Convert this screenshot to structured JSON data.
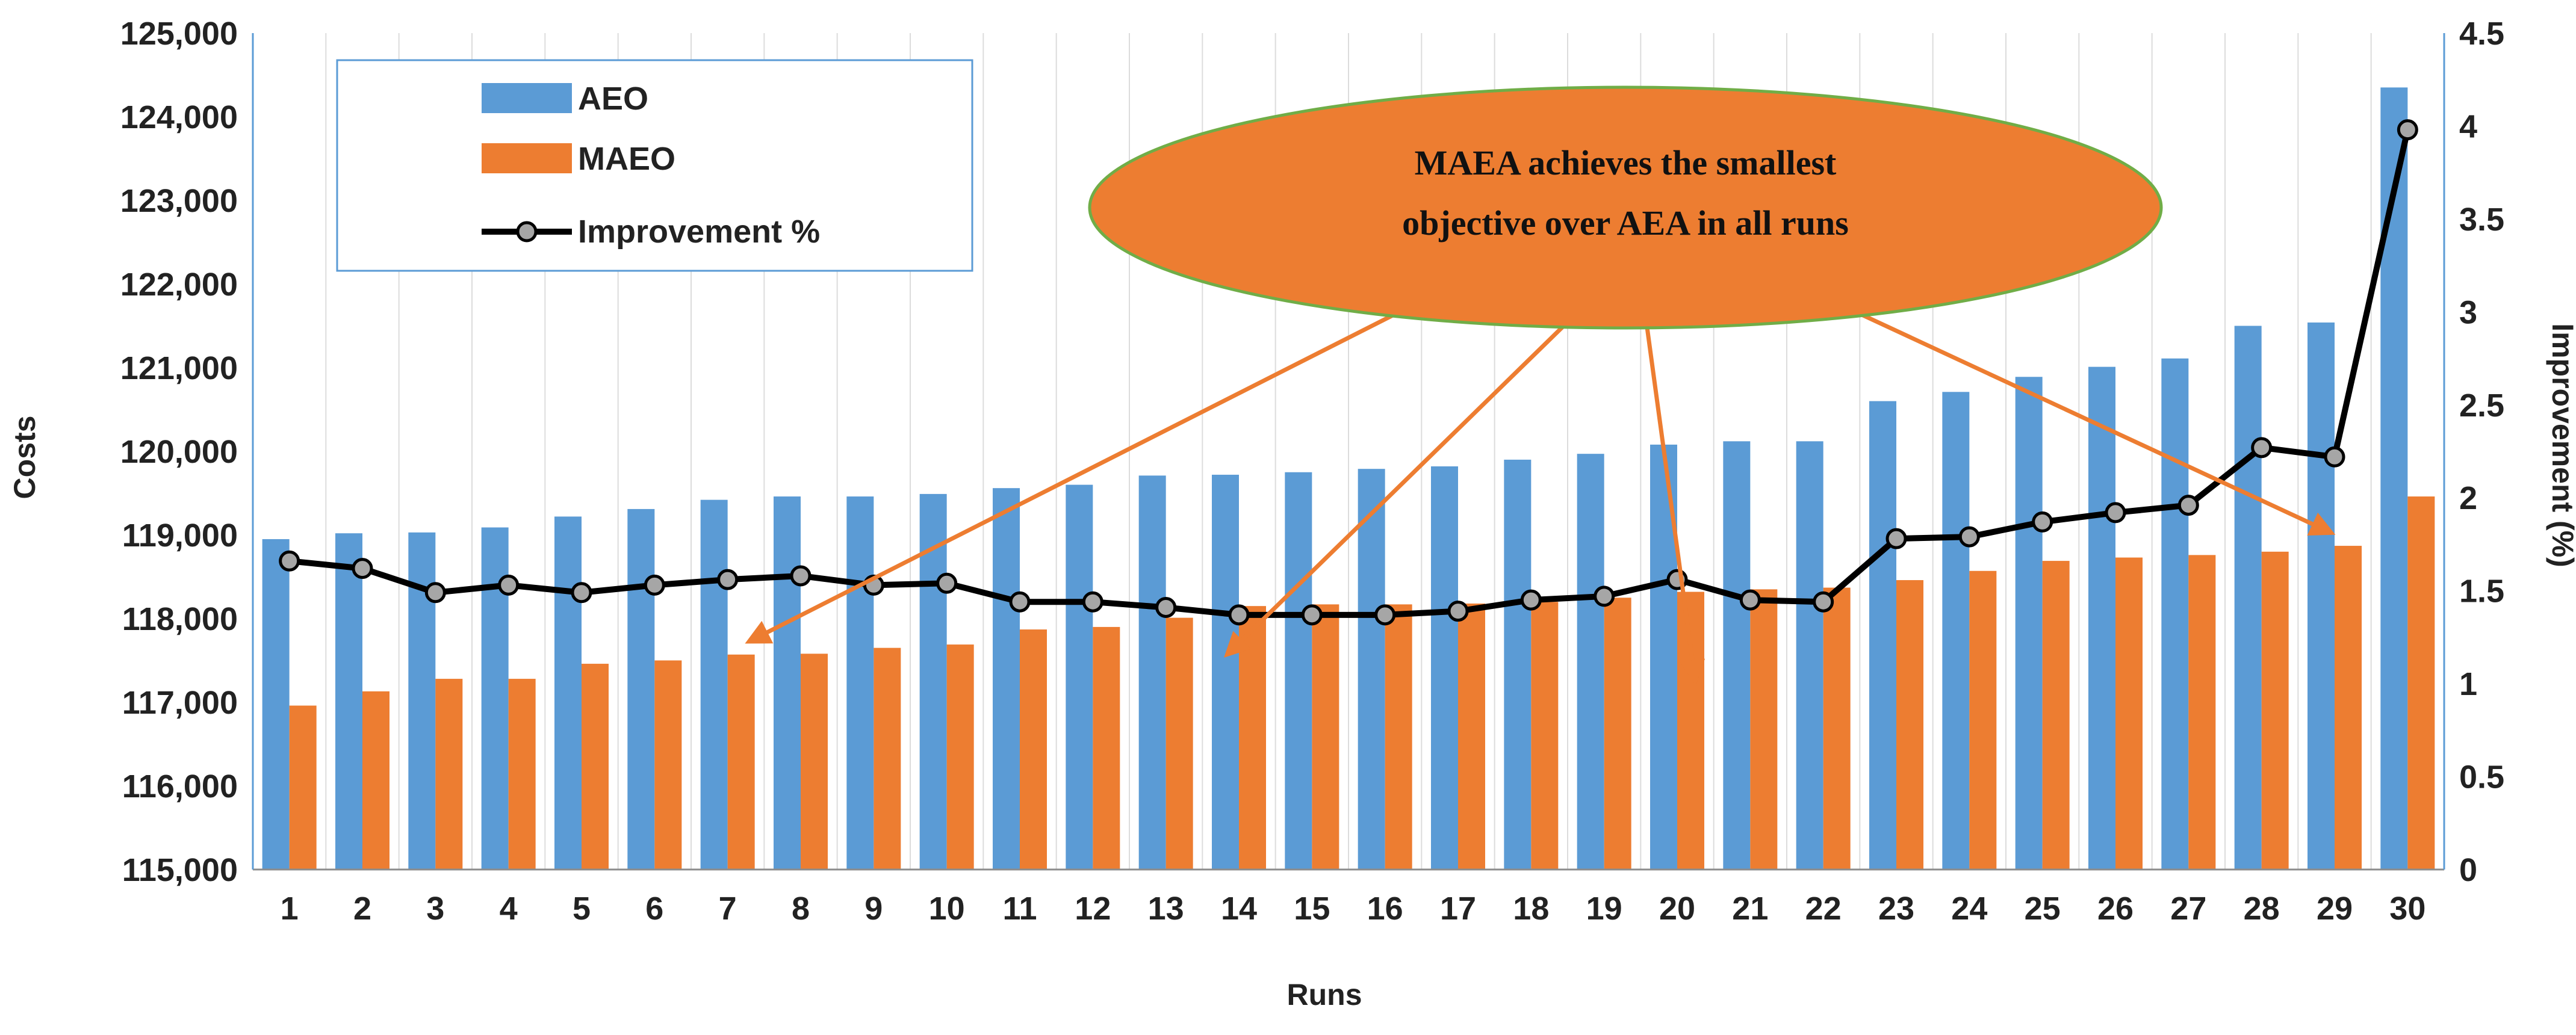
{
  "chart_data": {
    "type": "bar",
    "categories": [
      "1",
      "2",
      "3",
      "4",
      "5",
      "6",
      "7",
      "8",
      "9",
      "10",
      "11",
      "12",
      "13",
      "14",
      "15",
      "16",
      "17",
      "18",
      "19",
      "20",
      "21",
      "22",
      "23",
      "24",
      "25",
      "26",
      "27",
      "28",
      "29",
      "30"
    ],
    "series": [
      {
        "name": "AEO",
        "axis": "left",
        "color": "#5B9BD5",
        "values": [
          118950,
          119020,
          119030,
          119090,
          119220,
          119310,
          119420,
          119460,
          119460,
          119490,
          119560,
          119600,
          119710,
          119720,
          119750,
          119790,
          119820,
          119900,
          119970,
          120080,
          120120,
          120120,
          120600,
          120710,
          120890,
          121010,
          121110,
          121500,
          121540,
          124350
        ]
      },
      {
        "name": "MAEO",
        "axis": "left",
        "color": "#ED7D31",
        "values": [
          116960,
          117130,
          117280,
          117280,
          117460,
          117500,
          117570,
          117580,
          117650,
          117690,
          117870,
          117900,
          118010,
          118150,
          118170,
          118170,
          118180,
          118200,
          118250,
          118320,
          118350,
          118370,
          118460,
          118570,
          118690,
          118730,
          118760,
          118800,
          118870,
          119460
        ]
      },
      {
        "name": "Improvement %",
        "axis": "right",
        "type": "line",
        "color": "#000000",
        "values": [
          1.66,
          1.62,
          1.49,
          1.53,
          1.49,
          1.53,
          1.56,
          1.58,
          1.53,
          1.54,
          1.44,
          1.44,
          1.41,
          1.37,
          1.37,
          1.37,
          1.39,
          1.45,
          1.47,
          1.56,
          1.45,
          1.44,
          1.78,
          1.79,
          1.87,
          1.92,
          1.96,
          2.27,
          2.22,
          3.98
        ]
      }
    ],
    "title": "",
    "xlabel": "Runs",
    "ylabel": "Costs",
    "y2label": "Improvement (%)",
    "ylim": [
      115000,
      125000
    ],
    "y2lim": [
      0,
      4.5
    ],
    "yticks": [
      "115,000",
      "116,000",
      "117,000",
      "118,000",
      "119,000",
      "120,000",
      "121,000",
      "122,000",
      "123,000",
      "124,000",
      "125,000"
    ],
    "y2ticks": [
      "0",
      "0.5",
      "1",
      "1.5",
      "2",
      "2.5",
      "3",
      "3.5",
      "4",
      "4.5"
    ],
    "grid": "vertical",
    "legend_position": "top-left",
    "annotation": {
      "lines": [
        "MAEA achieves the smallest",
        "objective over AEA in all runs"
      ],
      "fill": "#ED7D31",
      "border": "#70AD47",
      "arrow_color": "#ED7D31",
      "arrow_targets_runs": [
        "7",
        "14",
        "20",
        "29"
      ]
    }
  }
}
